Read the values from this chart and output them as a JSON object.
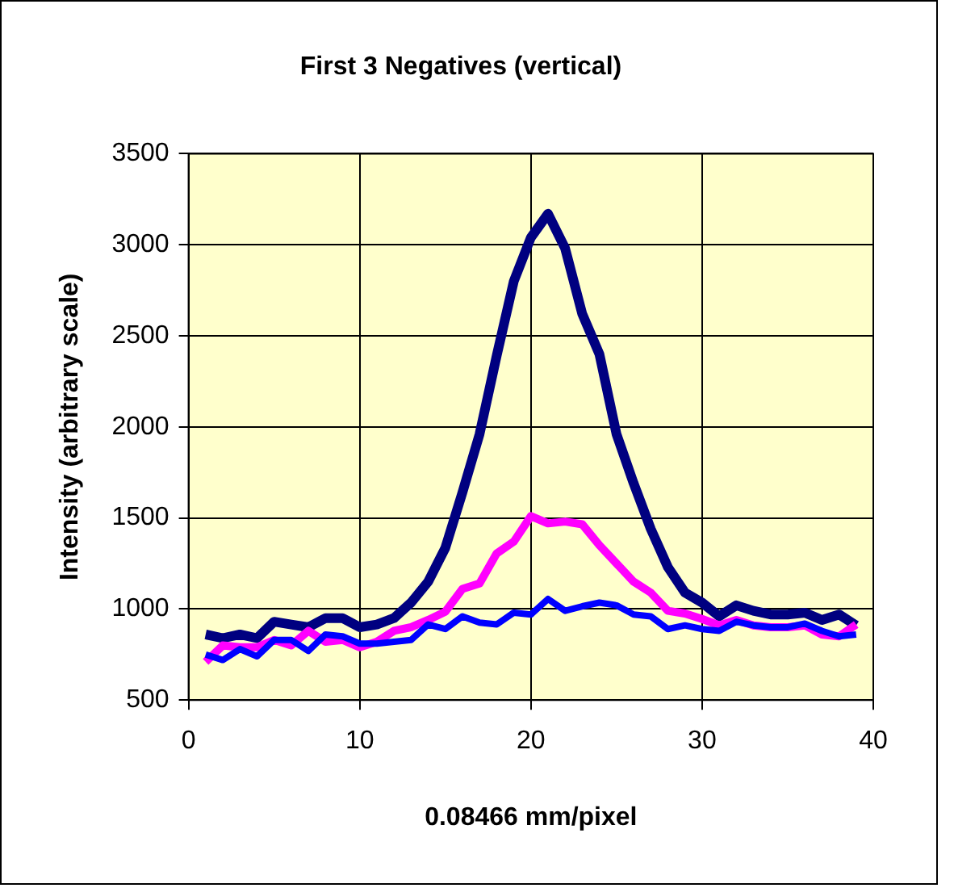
{
  "chart_data": {
    "type": "line",
    "title": "First 3 Negatives (vertical)",
    "xlabel": "0.08466 mm/pixel",
    "ylabel": "Intensity (arbitrary scale)",
    "x": [
      1,
      2,
      3,
      4,
      5,
      6,
      7,
      8,
      9,
      10,
      11,
      12,
      13,
      14,
      15,
      16,
      17,
      18,
      19,
      20,
      21,
      22,
      23,
      24,
      25,
      26,
      27,
      28,
      29,
      30,
      31,
      32,
      33,
      34,
      35,
      36,
      37,
      38,
      39
    ],
    "series": [
      {
        "color": "#000080",
        "values": [
          860,
          840,
          860,
          840,
          930,
          915,
          900,
          950,
          950,
          900,
          915,
          950,
          1035,
          1150,
          1335,
          1640,
          1960,
          2390,
          2800,
          3040,
          3170,
          2980,
          2620,
          2400,
          1960,
          1690,
          1440,
          1230,
          1090,
          1035,
          960,
          1020,
          990,
          970,
          970,
          980,
          940,
          970,
          910
        ]
      },
      {
        "color": "#ff00ff",
        "values": [
          710,
          800,
          790,
          790,
          830,
          800,
          880,
          820,
          830,
          790,
          820,
          880,
          900,
          940,
          985,
          1110,
          1140,
          1305,
          1370,
          1510,
          1470,
          1480,
          1465,
          1350,
          1250,
          1150,
          1090,
          990,
          975,
          945,
          910,
          940,
          910,
          900,
          900,
          910,
          860,
          850,
          915
        ]
      },
      {
        "color": "#0000ff",
        "values": [
          750,
          720,
          780,
          740,
          830,
          830,
          770,
          860,
          850,
          810,
          810,
          820,
          830,
          915,
          890,
          960,
          925,
          915,
          980,
          970,
          1055,
          990,
          1015,
          1035,
          1020,
          970,
          960,
          890,
          910,
          890,
          880,
          930,
          910,
          900,
          900,
          920,
          880,
          850,
          860
        ]
      }
    ],
    "xlim": [
      0,
      40
    ],
    "xticks": [
      0,
      10,
      20,
      30,
      40
    ],
    "ylim": [
      500,
      3500
    ],
    "yticks": [
      500,
      1000,
      1500,
      2000,
      2500,
      3000,
      3500
    ],
    "grid": true,
    "legend": false,
    "marker": "none",
    "line_style": "solid"
  }
}
